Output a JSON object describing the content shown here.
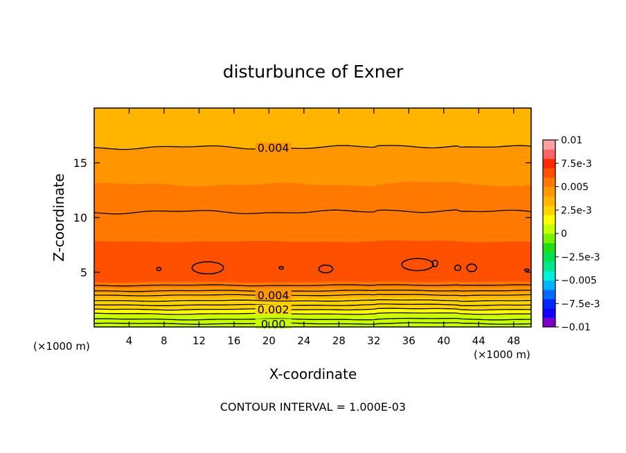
{
  "chart_data": {
    "type": "contour",
    "title": "disturbunce of Exner",
    "xlabel": "X-coordinate",
    "ylabel": "Z-coordinate",
    "x_unit_label_left": "(×1000 m)",
    "x_unit_label_right": "(×1000 m)",
    "footer": "CONTOUR INTERVAL = 1.000E-03",
    "xlim": [
      0,
      50
    ],
    "ylim": [
      0,
      20
    ],
    "x_ticks": [
      4,
      8,
      12,
      16,
      20,
      24,
      28,
      32,
      36,
      40,
      44,
      48
    ],
    "x_tick_labels": [
      "4",
      "8",
      "12",
      "16",
      "20",
      "24",
      "28",
      "32",
      "36",
      "40",
      "44",
      "48"
    ],
    "y_ticks": [
      5,
      10,
      15
    ],
    "y_tick_labels": [
      "5",
      "10",
      "15"
    ],
    "colorbar": {
      "min": -0.01,
      "max": 0.01,
      "labels": [
        {
          "value": 0.01,
          "text": "0.01"
        },
        {
          "value": 0.0075,
          "text": "7.5e-3"
        },
        {
          "value": 0.005,
          "text": "0.005"
        },
        {
          "value": 0.0025,
          "text": "2.5e-3"
        },
        {
          "value": 0,
          "text": "0"
        },
        {
          "value": -0.0025,
          "text": "−2.5e-3"
        },
        {
          "value": -0.005,
          "text": "−0.005"
        },
        {
          "value": -0.0075,
          "text": "−7.5e-3"
        },
        {
          "value": -0.01,
          "text": "−0.01"
        }
      ],
      "colors": [
        "#7f00c8",
        "#1400ff",
        "#0028ff",
        "#006cff",
        "#00b4ff",
        "#00f0dc",
        "#00e68c",
        "#00e050",
        "#20e010",
        "#78f000",
        "#c8ff00",
        "#ffff00",
        "#ffd200",
        "#ffb400",
        "#ff9600",
        "#ff7800",
        "#ff5000",
        "#ff2800",
        "#ff6464",
        "#ffa0a0"
      ]
    },
    "contour_labels": [
      {
        "text": "0.004",
        "x": 20.5,
        "z": 16.4
      },
      {
        "text": "0.004",
        "x": 20.5,
        "z": 2.9
      },
      {
        "text": "0.002",
        "x": 20.5,
        "z": 1.6
      },
      {
        "text": "0.00",
        "x": 20.5,
        "z": 0.3
      }
    ],
    "layers": [
      {
        "z_top": 20.0,
        "z_bottom": 16.4,
        "level": 0.0035
      },
      {
        "z_top": 16.4,
        "z_bottom": 13.0,
        "level": 0.0045
      },
      {
        "z_top": 13.0,
        "z_bottom": 10.5,
        "level": 0.0052
      },
      {
        "z_top": 10.5,
        "z_bottom": 7.8,
        "level": 0.0058
      },
      {
        "z_top": 7.8,
        "z_bottom": 4.1,
        "level": 0.0065
      },
      {
        "z_top": 4.1,
        "z_bottom": 3.6,
        "level": 0.0055
      },
      {
        "z_top": 3.6,
        "z_bottom": 3.1,
        "level": 0.0045
      },
      {
        "z_top": 3.1,
        "z_bottom": 2.6,
        "level": 0.0035
      },
      {
        "z_top": 2.6,
        "z_bottom": 2.1,
        "level": 0.0028
      },
      {
        "z_top": 2.1,
        "z_bottom": 1.6,
        "level": 0.0022
      },
      {
        "z_top": 1.6,
        "z_bottom": 1.1,
        "level": 0.0016
      },
      {
        "z_top": 1.1,
        "z_bottom": 0.6,
        "level": 0.001
      },
      {
        "z_top": 0.6,
        "z_bottom": 0.0,
        "level": 0.0003
      }
    ],
    "contours_z": [
      16.4,
      10.5,
      3.8,
      3.3,
      2.9,
      2.4,
      2.0,
      1.6,
      1.2,
      0.7,
      0.3
    ],
    "closed_contours": [
      {
        "x": 7.4,
        "z": 5.3,
        "rx": 0.25,
        "rz": 0.15
      },
      {
        "x": 13.0,
        "z": 5.4,
        "rx": 1.8,
        "rz": 0.55
      },
      {
        "x": 21.4,
        "z": 5.4,
        "rx": 0.25,
        "rz": 0.12
      },
      {
        "x": 26.5,
        "z": 5.3,
        "rx": 0.8,
        "rz": 0.35
      },
      {
        "x": 37.0,
        "z": 5.7,
        "rx": 1.8,
        "rz": 0.55
      },
      {
        "x": 39.0,
        "z": 5.8,
        "rx": 0.3,
        "rz": 0.3
      },
      {
        "x": 41.6,
        "z": 5.4,
        "rx": 0.35,
        "rz": 0.25
      },
      {
        "x": 43.2,
        "z": 5.4,
        "rx": 0.55,
        "rz": 0.35
      },
      {
        "x": 49.5,
        "z": 5.2,
        "rx": 0.25,
        "rz": 0.1
      }
    ]
  }
}
